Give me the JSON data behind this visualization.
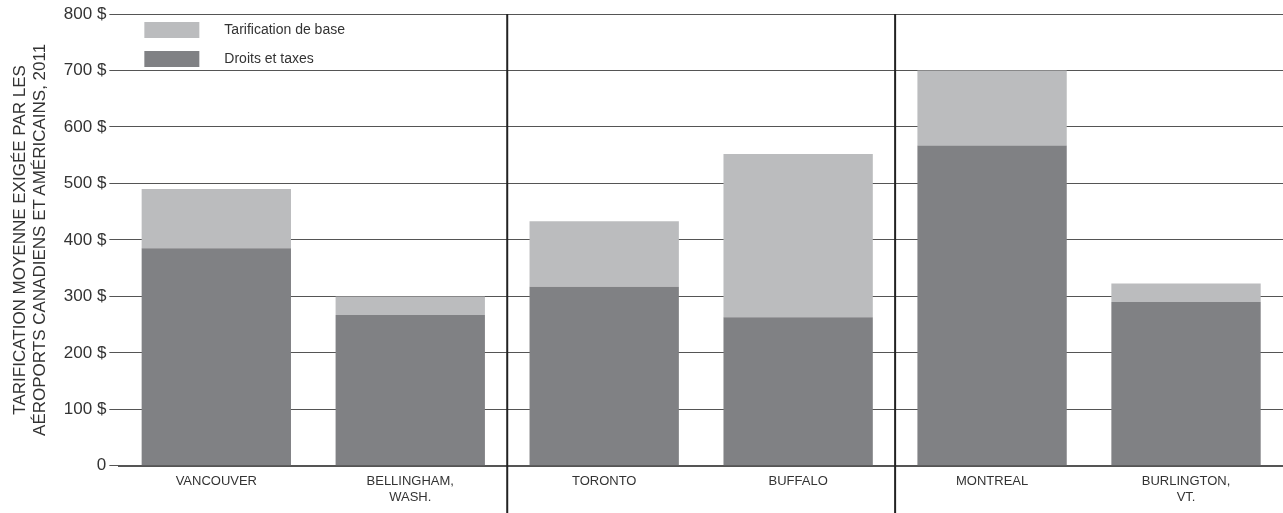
{
  "chart_data": {
    "type": "bar",
    "stacked": true,
    "categories": [
      "VANCOUVER",
      "BELLINGHAM, WASH.",
      "TORONTO",
      "BUFFALO",
      "MONTREAL",
      "BURLINGTON, VT."
    ],
    "ylabel": "TARIFICATION MOYENNE EXIGÉE PAR LES\nAÉROPORTS CANADIENS ET AMÉRICAINS, 2011",
    "series": [
      {
        "name": "Droits et taxes",
        "color": "#808184",
        "values": [
          385,
          267,
          317,
          263,
          567,
          290
        ]
      },
      {
        "name": "Tarification de base",
        "color": "#bbbcbe",
        "values": [
          105,
          33,
          116,
          289,
          133,
          33
        ]
      }
    ],
    "ylim": [
      0,
      800
    ],
    "yticks": [
      0,
      {
        "value": 100,
        "label": "100 $"
      },
      {
        "value": 200,
        "label": "200 $"
      },
      {
        "value": 300,
        "label": "300 $"
      },
      {
        "value": 400,
        "label": "400 $"
      },
      {
        "value": 500,
        "label": "500 $"
      },
      {
        "value": 600,
        "label": "600 $"
      },
      {
        "value": 700,
        "label": "700 $"
      },
      {
        "value": 800,
        "label": "800 $"
      }
    ],
    "grid": "y",
    "legend": "top left"
  }
}
